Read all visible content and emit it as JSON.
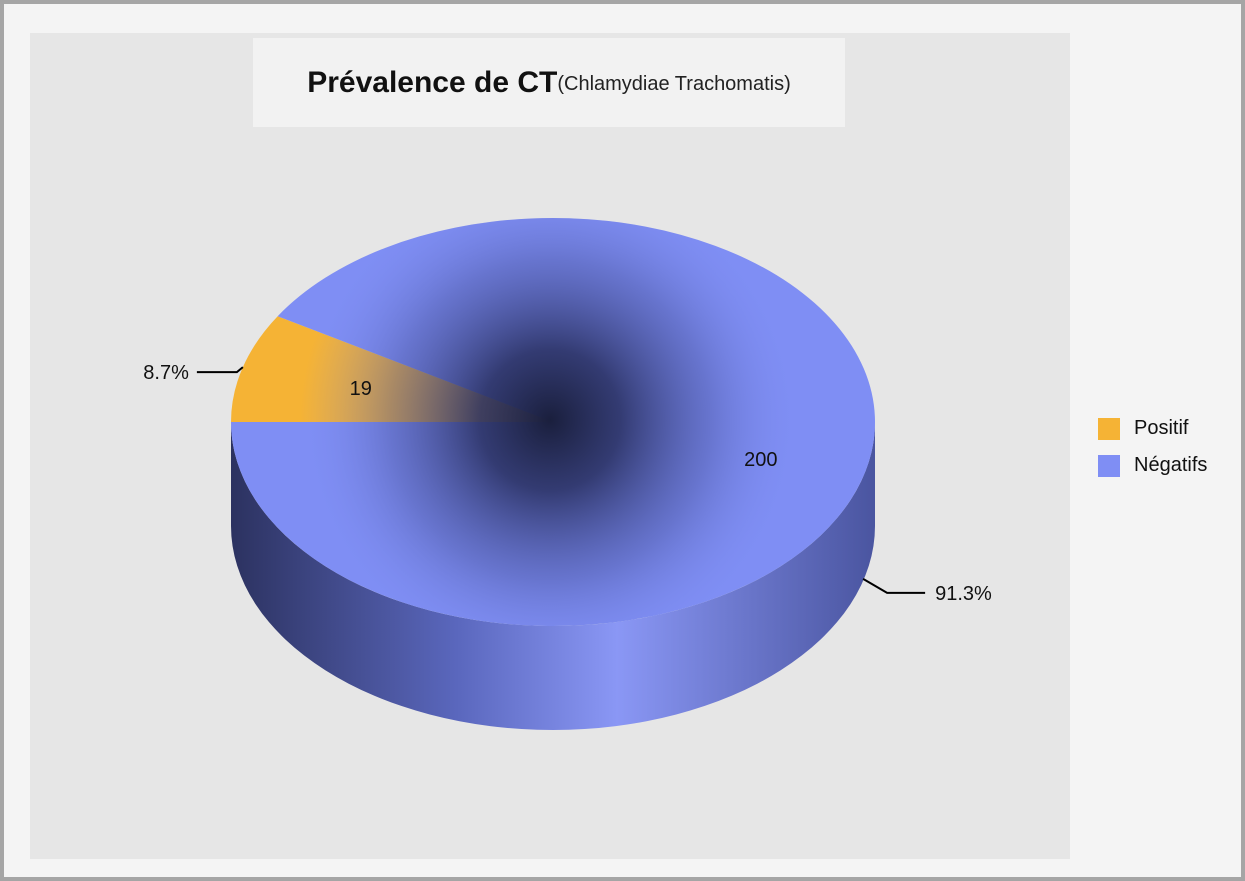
{
  "chart_data": {
    "type": "pie",
    "title": "Prévalence de CT",
    "subtitle": "(Chlamydiae Trachomatis)",
    "slices": [
      {
        "name": "Positif",
        "value": 19,
        "percent_label": "8.7%",
        "color": "#f5b335"
      },
      {
        "name": "Négatifs",
        "value": 200,
        "percent_label": "91.3%",
        "color": "#7f8ef4"
      }
    ],
    "legend_position": "right",
    "style": "3d-gradient"
  }
}
